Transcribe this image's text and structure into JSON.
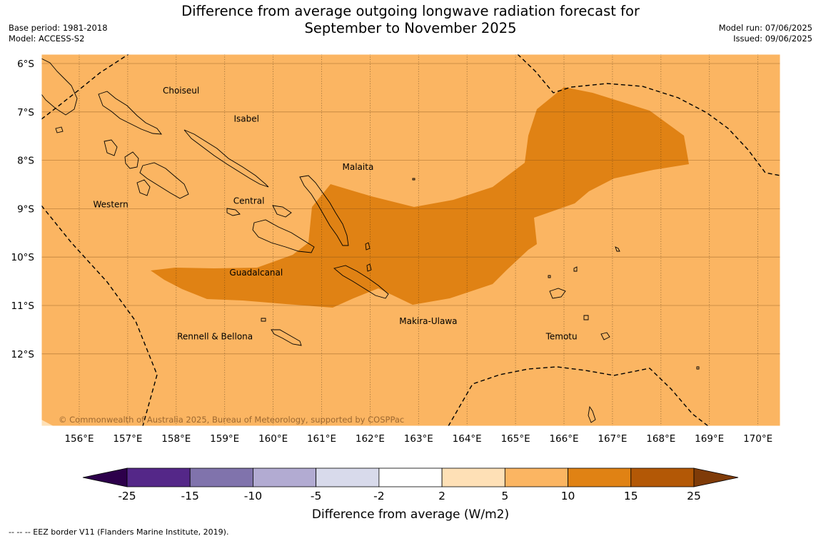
{
  "header": {
    "title_line1": "Difference from average outgoing longwave radiation forecast for",
    "title_line2": "September to November 2025",
    "base_period": "Base period: 1981-2018",
    "model": "Model: ACCESS-S2",
    "model_run": "Model run: 07/06/2025",
    "issued": "Issued: 09/06/2025"
  },
  "map": {
    "lat_labels": [
      "6°S",
      "7°S",
      "8°S",
      "9°S",
      "10°S",
      "11°S",
      "12°S"
    ],
    "lon_labels": [
      "156°E",
      "157°E",
      "158°E",
      "159°E",
      "160°E",
      "161°E",
      "162°E",
      "163°E",
      "164°E",
      "165°E",
      "166°E",
      "167°E",
      "168°E",
      "169°E",
      "170°E"
    ],
    "regions": [
      {
        "name": "Choiseul",
        "lon": 158.1,
        "lat": -6.62
      },
      {
        "name": "Isabel",
        "lon": 159.45,
        "lat": -7.2
      },
      {
        "name": "Malaita",
        "lon": 161.75,
        "lat": -8.2
      },
      {
        "name": "Central",
        "lon": 159.5,
        "lat": -8.9
      },
      {
        "name": "Western",
        "lon": 156.65,
        "lat": -8.97
      },
      {
        "name": "Guadalcanal",
        "lon": 159.65,
        "lat": -10.38
      },
      {
        "name": "Makira-Ulawa",
        "lon": 163.2,
        "lat": -11.38
      },
      {
        "name": "Rennell & Bellona",
        "lon": 158.8,
        "lat": -11.7
      },
      {
        "name": "Temotu",
        "lon": 165.95,
        "lat": -11.7
      }
    ],
    "copyright": "© Commonwealth of Australia 2025, Bureau of Meteorology, supported by COSPPac",
    "colors": {
      "background_5_10": "#fbb562",
      "anomaly_10_15": "#e08214"
    }
  },
  "legend": {
    "title": "Difference from average (W/m2)",
    "tick_labels": [
      "-25",
      "-15",
      "-10",
      "-5",
      "-2",
      "2",
      "5",
      "10",
      "15",
      "25"
    ],
    "colors": [
      "#2d004b",
      "#542788",
      "#8073ac",
      "#b2abd2",
      "#d8daeb",
      "#ffffff",
      "#fee0b6",
      "#fbb562",
      "#e08214",
      "#b35806",
      "#7f3b08"
    ]
  },
  "footnote": "--  --  -- EEZ border V11 (Flanders Marine Institute, 2019)."
}
